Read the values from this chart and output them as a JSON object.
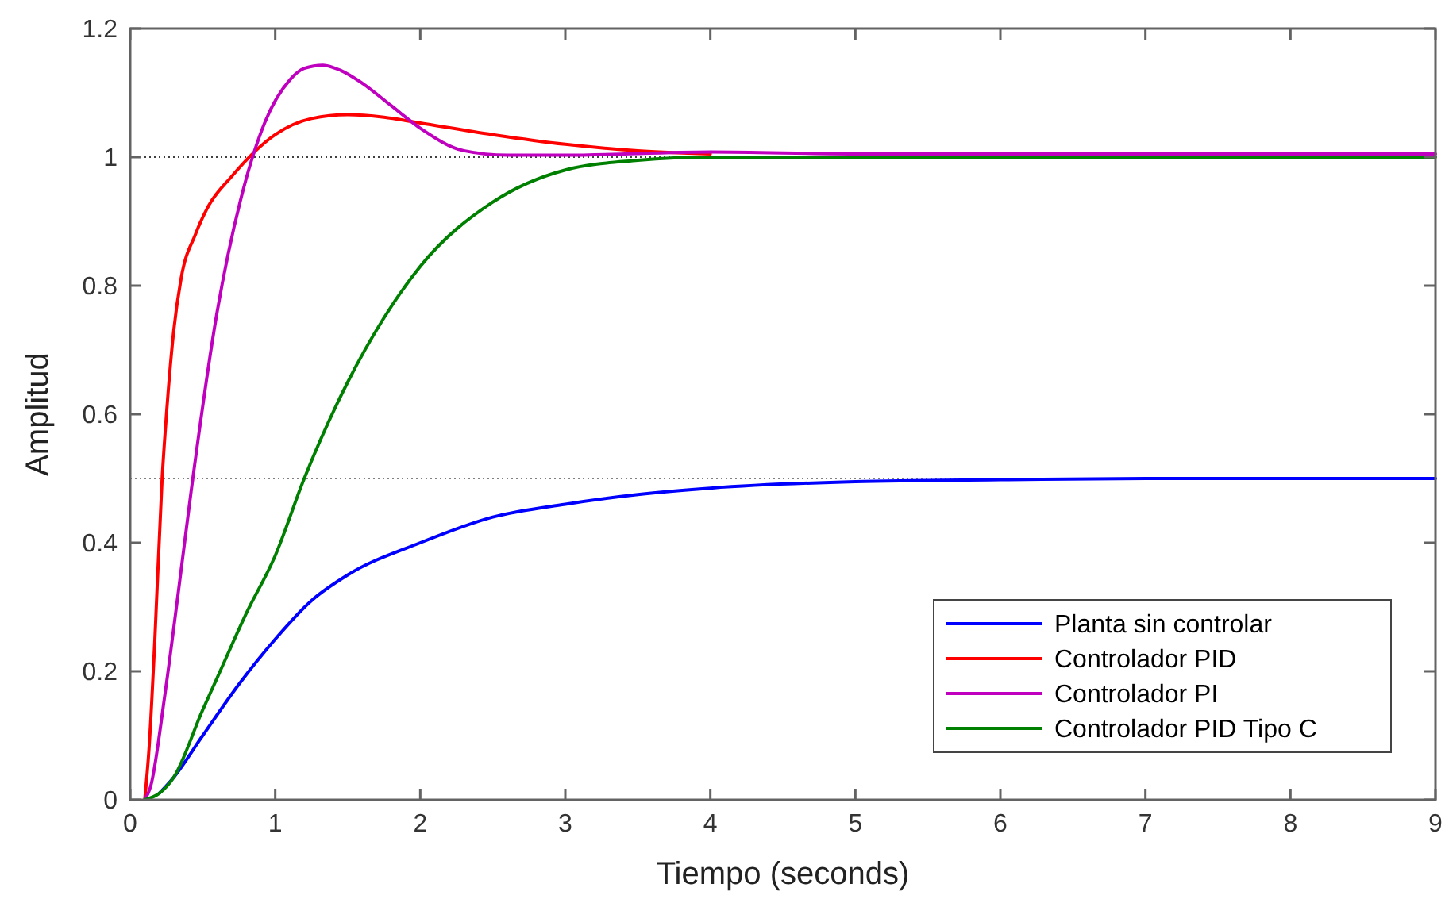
{
  "chart_data": {
    "type": "line",
    "xlabel": "Tiempo (seconds)",
    "ylabel": "Amplitud",
    "xlim": [
      0,
      9
    ],
    "ylim": [
      0,
      1.2
    ],
    "xticks": [
      0,
      1,
      2,
      3,
      4,
      5,
      6,
      7,
      8,
      9
    ],
    "yticks": [
      0,
      0.2,
      0.4,
      0.6,
      0.8,
      1,
      1.2
    ],
    "grid": false,
    "legend": "bottom right",
    "line_style": "solid",
    "marker": "none",
    "ref_lines": [
      {
        "axis": "y",
        "value": 1,
        "line_style": "dotted",
        "color": "#404040"
      },
      {
        "axis": "y",
        "value": 0.5,
        "line_style": "dotted",
        "color": "#808080"
      }
    ],
    "series": [
      {
        "name": "Planta sin controlar",
        "color": "#0000ff",
        "x": [
          0.2,
          0.3,
          0.5,
          0.75,
          1,
          1.25,
          1.5,
          2,
          2.5,
          3,
          3.5,
          4,
          5,
          6,
          7,
          8,
          9
        ],
        "values": [
          0.01,
          0.035,
          0.1,
          0.18,
          0.25,
          0.31,
          0.35,
          0.4,
          0.44,
          0.46,
          0.475,
          0.485,
          0.495,
          0.498,
          0.5,
          0.5,
          0.5
        ]
      },
      {
        "name": "Controlador PID",
        "color": "#ff0000",
        "x": [
          0.1,
          0.13,
          0.17,
          0.22,
          0.25,
          0.3,
          0.35,
          0.45,
          0.53,
          0.7,
          1,
          1.25,
          1.5,
          1.75,
          2,
          2.5,
          3,
          3.5,
          4
        ],
        "values": [
          0,
          0.08,
          0.25,
          0.5,
          0.6,
          0.73,
          0.81,
          0.88,
          0.92,
          0.97,
          1.035,
          1.06,
          1.066,
          1.062,
          1.053,
          1.035,
          1.02,
          1.01,
          1.005
        ]
      },
      {
        "name": "Controlador PI",
        "color": "#bf00bf",
        "x": [
          0.1,
          0.14,
          0.24,
          0.33,
          0.42,
          0.6,
          0.78,
          0.93,
          1.1,
          1.2,
          1.33,
          1.45,
          1.6,
          1.8,
          2,
          2.3,
          2.6,
          3,
          4,
          5,
          6,
          7,
          8,
          9
        ],
        "values": [
          0,
          0.02,
          0.165,
          0.32,
          0.48,
          0.76,
          0.95,
          1.055,
          1.12,
          1.138,
          1.143,
          1.135,
          1.115,
          1.08,
          1.045,
          1.01,
          1.003,
          1.003,
          1.008,
          1.005,
          1.005,
          1.005,
          1.005,
          1.005
        ]
      },
      {
        "name": "Controlador PID Tipo C",
        "color": "#008000",
        "x": [
          0.1,
          0.2,
          0.3,
          0.5,
          0.6,
          0.8,
          1,
          1.2,
          1.5,
          1.75,
          2,
          2.5,
          3,
          3.5,
          4,
          5,
          6,
          7,
          8,
          9
        ],
        "values": [
          0,
          0.01,
          0.035,
          0.14,
          0.19,
          0.29,
          0.38,
          0.5,
          0.65,
          0.75,
          0.83,
          0.93,
          0.98,
          0.995,
          1,
          1,
          1,
          1,
          1,
          1
        ]
      }
    ]
  }
}
